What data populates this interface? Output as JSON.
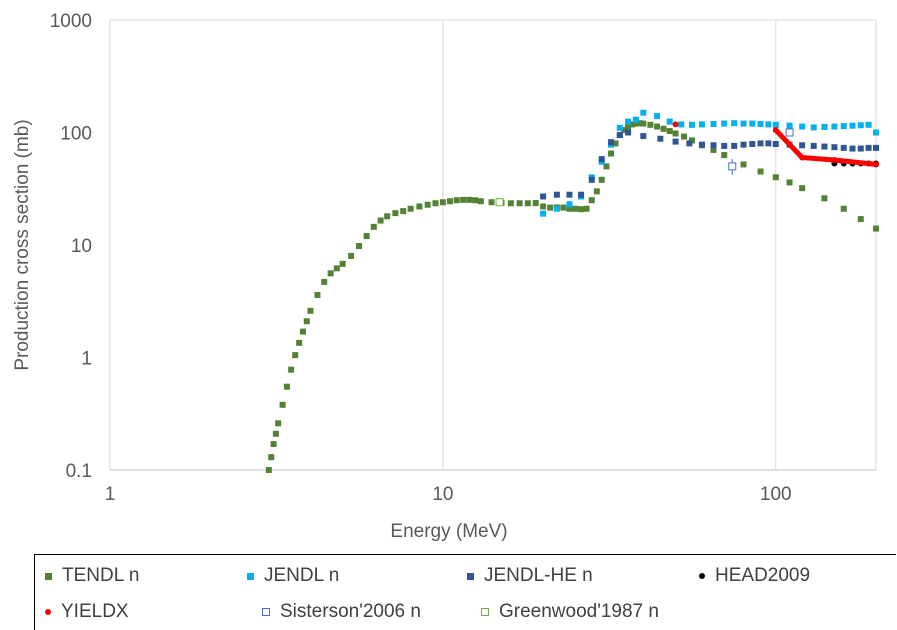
{
  "chart_data": {
    "type": "scatter",
    "title": "",
    "xlabel": "Energy (MeV)",
    "ylabel": "Production cross section (mb)",
    "xscale": "log",
    "yscale": "log",
    "xlim": [
      1,
      200
    ],
    "ylim": [
      0.1,
      1000
    ],
    "x_ticks": [
      1,
      10,
      100
    ],
    "x_tick_labels": [
      "1",
      "10",
      "100"
    ],
    "y_ticks": [
      0.1,
      1,
      10,
      100,
      1000
    ],
    "y_tick_labels": [
      "0.1",
      "1",
      "10",
      "100",
      "1000"
    ],
    "grid": "vertical gridlines at decades",
    "legend_position": "bottom",
    "series": [
      {
        "name": "TENDL n",
        "marker": "filled-square",
        "color": "#548235",
        "x": [
          3.0,
          3.05,
          3.1,
          3.15,
          3.2,
          3.3,
          3.4,
          3.5,
          3.6,
          3.7,
          3.8,
          3.9,
          4.0,
          4.2,
          4.4,
          4.6,
          4.8,
          5.0,
          5.3,
          5.6,
          5.9,
          6.2,
          6.5,
          6.8,
          7.2,
          7.6,
          8.0,
          8.5,
          9.0,
          9.5,
          10.0,
          10.5,
          11.0,
          11.5,
          12.0,
          12.5,
          13.0,
          14.0,
          15.0,
          16.0,
          17.0,
          18.0,
          19.0,
          20.0,
          21.0,
          22.0,
          23.0,
          24.0,
          25.0,
          26.0,
          27.0,
          28.0,
          29.0,
          30.0,
          31.0,
          32.0,
          33.0,
          34.0,
          35.0,
          36.0,
          37.0,
          38.0,
          39.0,
          40.0,
          42.0,
          44.0,
          46.0,
          48.0,
          50.0,
          53.0,
          56.0,
          60.0,
          65.0,
          70.0,
          80.0,
          90.0,
          100.0,
          110.0,
          120.0,
          140.0,
          160.0,
          180.0,
          200.0
        ],
        "y": [
          0.1,
          0.13,
          0.17,
          0.21,
          0.26,
          0.38,
          0.55,
          0.78,
          1.05,
          1.35,
          1.7,
          2.1,
          2.6,
          3.6,
          4.7,
          5.6,
          6.2,
          6.8,
          8.0,
          9.8,
          12.0,
          14.5,
          16.5,
          18.0,
          19.2,
          20.0,
          21.0,
          22.0,
          22.8,
          23.5,
          24.0,
          24.5,
          25.0,
          25.2,
          25.2,
          25.0,
          24.5,
          24.0,
          23.8,
          23.5,
          23.5,
          23.5,
          23.6,
          22.0,
          21.5,
          21.6,
          21.5,
          21.0,
          21.0,
          20.8,
          21.0,
          25.0,
          30.0,
          38.0,
          50.0,
          65.0,
          80.0,
          95.0,
          105.0,
          112.0,
          118.0,
          120.0,
          121.0,
          120.0,
          117.0,
          113.0,
          108.0,
          103.0,
          98.0,
          92.0,
          85.0,
          77.0,
          70.0,
          63.0,
          52.0,
          45.0,
          40.0,
          36.0,
          32.0,
          26.0,
          21.0,
          17.0,
          14.0
        ]
      },
      {
        "name": "JENDL n",
        "marker": "filled-square",
        "color": "#00B0F0",
        "x": [
          20,
          22,
          24,
          26,
          28,
          30,
          32,
          34,
          36,
          38,
          40,
          44,
          48,
          52,
          56,
          60,
          65,
          70,
          75,
          80,
          85,
          90,
          95,
          100,
          110,
          120,
          130,
          140,
          150,
          160,
          170,
          180,
          190,
          200
        ],
        "y": [
          19,
          21,
          23,
          27,
          40,
          55,
          78,
          110,
          125,
          130,
          150,
          140,
          125,
          118,
          117,
          118,
          119,
          120,
          121,
          120,
          120,
          119,
          118,
          117,
          115,
          113,
          111,
          112,
          113,
          114,
          115,
          116,
          117,
          100
        ]
      },
      {
        "name": "JENDL-HE n",
        "marker": "filled-square",
        "color": "#2F5597",
        "x": [
          20,
          22,
          24,
          26,
          28,
          30,
          32,
          34,
          36,
          40,
          45,
          50,
          55,
          60,
          65,
          70,
          75,
          80,
          85,
          90,
          95,
          100,
          110,
          120,
          130,
          140,
          150,
          160,
          170,
          180,
          190,
          200
        ],
        "y": [
          27,
          28,
          28,
          28,
          38,
          58,
          82,
          95,
          100,
          93,
          88,
          83,
          80,
          78,
          77,
          76,
          76,
          78,
          79,
          80,
          80,
          79,
          78,
          77,
          76,
          75,
          74,
          73,
          72,
          72,
          73,
          73
        ]
      },
      {
        "name": "HEAD2009",
        "marker": "filled-circle",
        "color": "#000000",
        "x": [
          150,
          160,
          170,
          180,
          190,
          200
        ],
        "y": [
          53,
          53,
          53,
          53,
          53,
          53
        ]
      },
      {
        "name": "YIELDX",
        "marker": "filled-circle",
        "color": "#FF0000",
        "x": [
          50,
          100,
          120,
          150,
          200
        ],
        "y": [
          118,
          105,
          60,
          57,
          52
        ],
        "line_from_x": 100
      },
      {
        "name": "Sisterson'2006 n",
        "marker": "open-square",
        "color": "#4472C4",
        "x": [
          74,
          110
        ],
        "y": [
          50,
          100
        ],
        "yerr": [
          8,
          6
        ]
      },
      {
        "name": "Greenwood'1987 n",
        "marker": "open-square",
        "color": "#70AD47",
        "x": [
          14.8
        ],
        "y": [
          24
        ]
      }
    ]
  },
  "legend": {
    "items": [
      {
        "label": "TENDL n",
        "marker": "filled-square",
        "color": "#548235"
      },
      {
        "label": "JENDL n",
        "marker": "filled-square",
        "color": "#00B0F0"
      },
      {
        "label": "JENDL-HE n",
        "marker": "filled-square",
        "color": "#2F5597"
      },
      {
        "label": "HEAD2009",
        "marker": "filled-circle",
        "color": "#000000"
      },
      {
        "label": "YIELDX",
        "marker": "filled-circle",
        "color": "#FF0000"
      },
      {
        "label": "Sisterson'2006 n",
        "marker": "open-square",
        "color": "#4472C4"
      },
      {
        "label": "Greenwood'1987 n",
        "marker": "open-square",
        "color": "#70AD47"
      }
    ]
  }
}
